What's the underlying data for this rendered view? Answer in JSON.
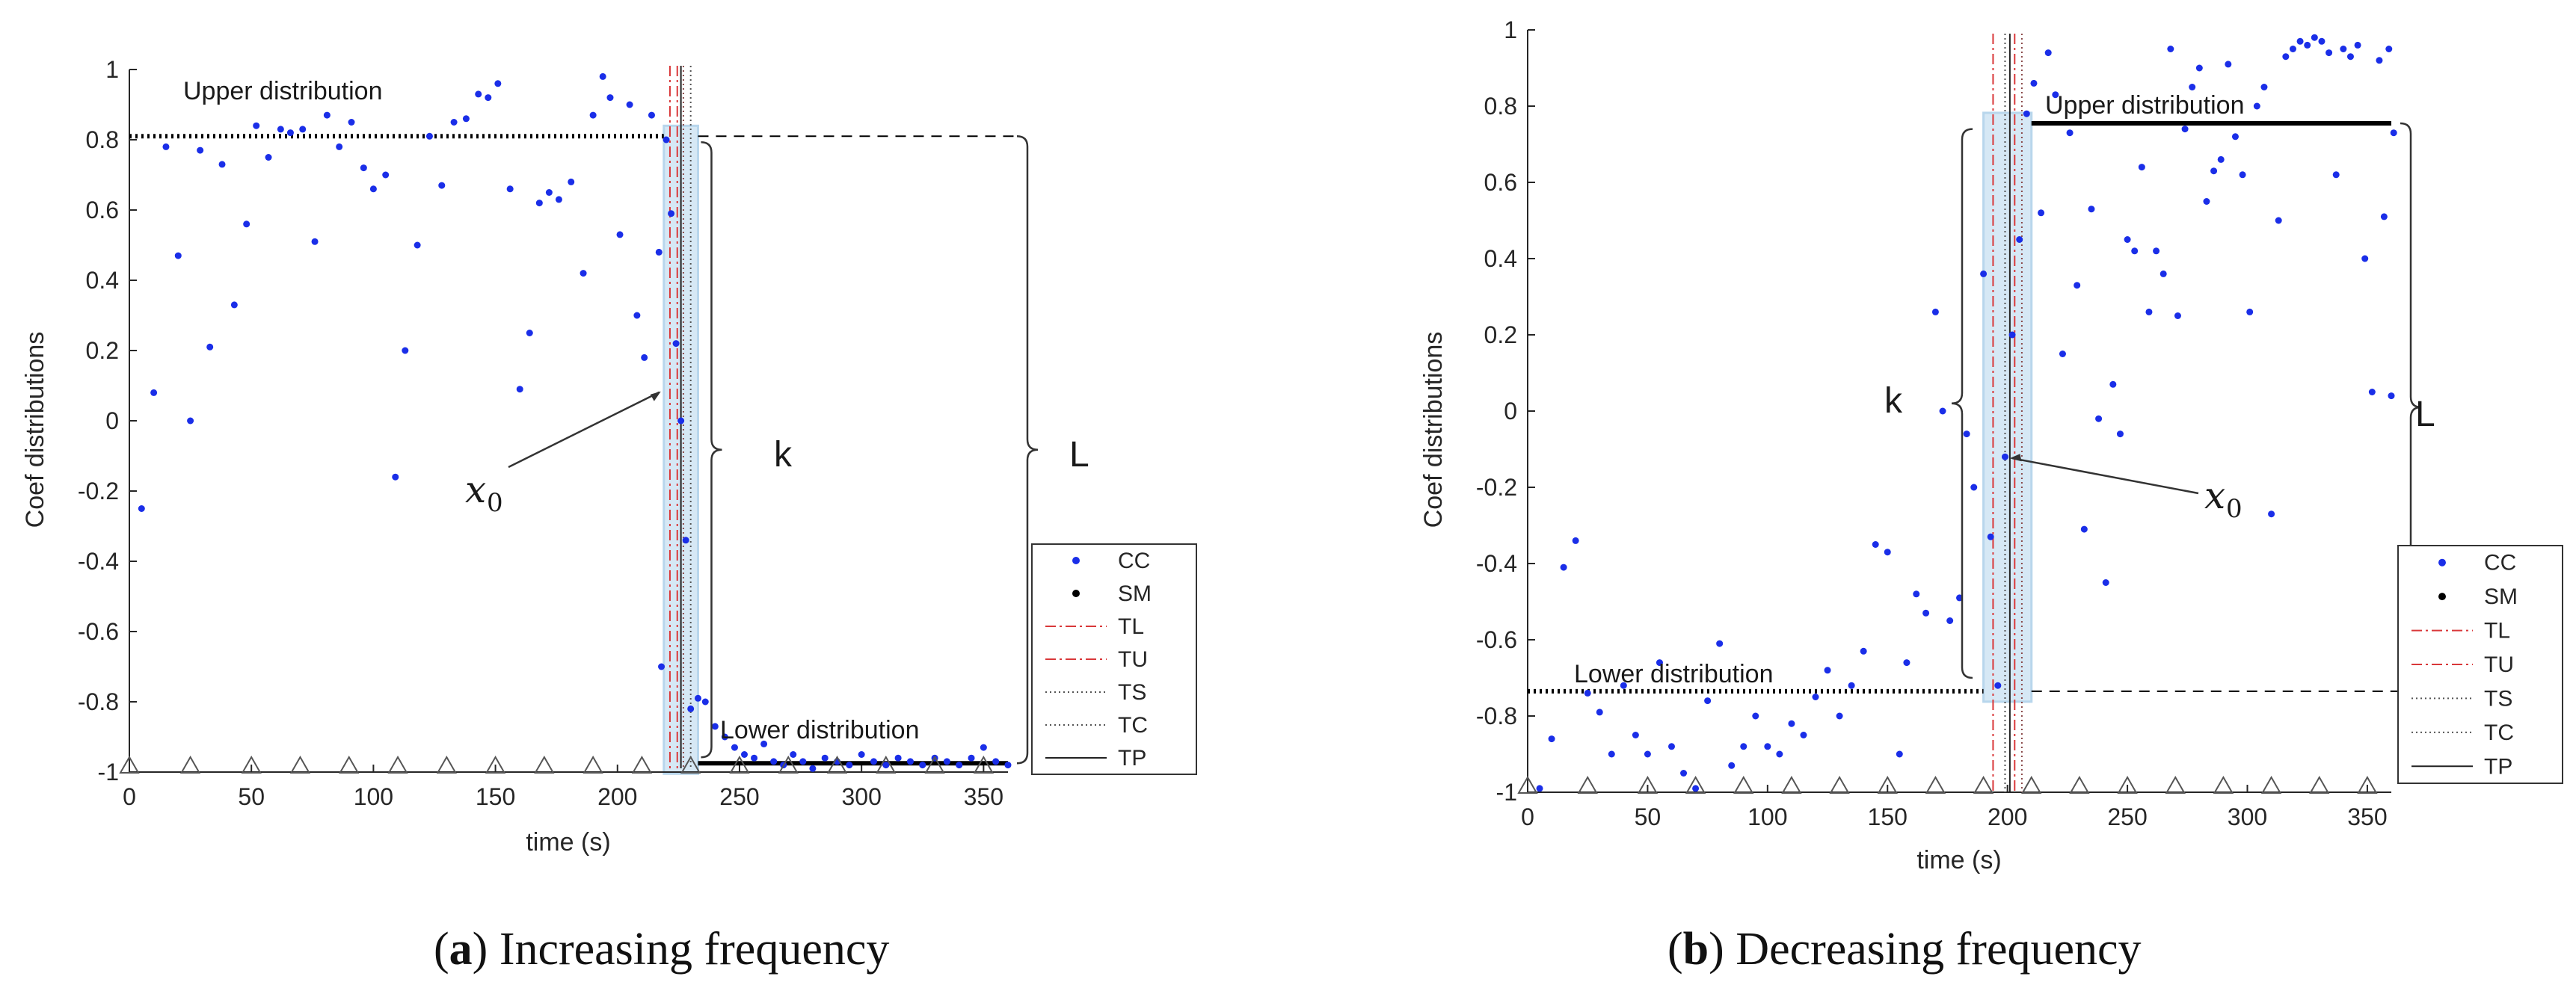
{
  "chart_data": [
    {
      "type": "scatter",
      "caption_label": "a",
      "caption_text": "Increasing frequency",
      "ylabel": "Coef distributions",
      "xlabel": "time (s)",
      "xlim": [
        0,
        360
      ],
      "ylim": [
        -1,
        1
      ],
      "xticks": [
        "0",
        "50",
        "100",
        "150",
        "200",
        "250",
        "300",
        "350"
      ],
      "yticks": [
        "1",
        "0.8",
        "0.6",
        "0.4",
        "0.2",
        "0",
        "-0.2",
        "-0.4",
        "-0.6",
        "-0.8",
        "-1"
      ],
      "upper_label": "Upper distribution",
      "lower_label": "Lower distribution",
      "upper_level": 0.81,
      "lower_level": -0.975,
      "transition_start": 219,
      "transition_end": 233,
      "TL": 221.5,
      "TU": 224.5,
      "TS": 230,
      "TC": 227,
      "TP": 226,
      "x0_point": [
        219,
        0.09
      ],
      "k_label": "k",
      "L_label": "L",
      "x0_label": "x",
      "x0_sub": "0",
      "cc_points": [
        [
          5,
          -0.25
        ],
        [
          10,
          0.08
        ],
        [
          15,
          0.78
        ],
        [
          20,
          0.47
        ],
        [
          25,
          0.0
        ],
        [
          29,
          0.77
        ],
        [
          33,
          0.21
        ],
        [
          38,
          0.73
        ],
        [
          43,
          0.33
        ],
        [
          48,
          0.56
        ],
        [
          52,
          0.84
        ],
        [
          57,
          0.75
        ],
        [
          62,
          0.83
        ],
        [
          66,
          0.82
        ],
        [
          71,
          0.83
        ],
        [
          76,
          0.51
        ],
        [
          81,
          0.87
        ],
        [
          86,
          0.78
        ],
        [
          91,
          0.85
        ],
        [
          96,
          0.72
        ],
        [
          100,
          0.66
        ],
        [
          105,
          0.7
        ],
        [
          109,
          -0.16
        ],
        [
          113,
          0.2
        ],
        [
          118,
          0.5
        ],
        [
          123,
          0.81
        ],
        [
          128,
          0.67
        ],
        [
          133,
          0.85
        ],
        [
          138,
          0.86
        ],
        [
          143,
          0.93
        ],
        [
          147,
          0.92
        ],
        [
          151,
          0.96
        ],
        [
          156,
          0.66
        ],
        [
          160,
          0.09
        ],
        [
          164,
          0.25
        ],
        [
          168,
          0.62
        ],
        [
          172,
          0.65
        ],
        [
          176,
          0.63
        ],
        [
          181,
          0.68
        ],
        [
          186,
          0.42
        ],
        [
          190,
          0.87
        ],
        [
          194,
          0.98
        ],
        [
          197,
          0.92
        ],
        [
          201,
          0.53
        ],
        [
          205,
          0.9
        ],
        [
          208,
          0.3
        ],
        [
          211,
          0.18
        ],
        [
          214,
          0.87
        ],
        [
          217,
          0.48
        ],
        [
          218,
          -0.7
        ],
        [
          220,
          0.8
        ],
        [
          222,
          0.59
        ],
        [
          224,
          0.22
        ],
        [
          226,
          0.0
        ],
        [
          228,
          -0.34
        ],
        [
          230,
          -0.82
        ],
        [
          233,
          -0.79
        ],
        [
          236,
          -0.8
        ],
        [
          240,
          -0.87
        ],
        [
          244,
          -0.9
        ],
        [
          248,
          -0.93
        ],
        [
          252,
          -0.95
        ],
        [
          256,
          -0.96
        ],
        [
          260,
          -0.92
        ],
        [
          264,
          -0.97
        ],
        [
          268,
          -0.98
        ],
        [
          272,
          -0.95
        ],
        [
          276,
          -0.97
        ],
        [
          280,
          -0.99
        ],
        [
          285,
          -0.96
        ],
        [
          290,
          -0.97
        ],
        [
          295,
          -0.98
        ],
        [
          300,
          -0.95
        ],
        [
          305,
          -0.97
        ],
        [
          310,
          -0.98
        ],
        [
          315,
          -0.96
        ],
        [
          320,
          -0.97
        ],
        [
          325,
          -0.98
        ],
        [
          330,
          -0.96
        ],
        [
          335,
          -0.97
        ],
        [
          340,
          -0.98
        ],
        [
          345,
          -0.96
        ],
        [
          350,
          -0.93
        ],
        [
          355,
          -0.97
        ],
        [
          360,
          -0.98
        ]
      ],
      "triangle_x": [
        0,
        25,
        50,
        70,
        90,
        110,
        130,
        150,
        170,
        190,
        210,
        230,
        250,
        270,
        290,
        310,
        330,
        350
      ],
      "legend": [
        "CC",
        "SM",
        "TL",
        "TU",
        "TS",
        "TC",
        "TP"
      ]
    },
    {
      "type": "scatter",
      "caption_label": "b",
      "caption_text": "Decreasing frequency",
      "ylabel": "Coef distributions",
      "xlabel": "time (s)",
      "xlim": [
        0,
        360
      ],
      "ylim": [
        -1,
        1
      ],
      "xticks": [
        "0",
        "50",
        "100",
        "150",
        "200",
        "250",
        "300",
        "350"
      ],
      "yticks": [
        "1",
        "0.8",
        "0.6",
        "0.4",
        "0.2",
        "0",
        "-0.2",
        "-0.4",
        "-0.6",
        "-0.8",
        "-1"
      ],
      "upper_label": "Upper distribution",
      "lower_label": "Lower distribution",
      "upper_level": 0.755,
      "lower_level": -0.735,
      "transition_start": 190,
      "transition_end": 210,
      "TL": 194,
      "TU": 203,
      "TS": 199,
      "TC": 206,
      "TP": 201,
      "x0_point": [
        199,
        -0.12
      ],
      "k_label": "k",
      "L_label": "L",
      "x0_label": "x",
      "x0_sub": "0",
      "cc_points": [
        [
          5,
          -0.99
        ],
        [
          10,
          -0.86
        ],
        [
          15,
          -0.41
        ],
        [
          20,
          -0.34
        ],
        [
          25,
          -0.74
        ],
        [
          30,
          -0.79
        ],
        [
          35,
          -0.9
        ],
        [
          40,
          -0.72
        ],
        [
          45,
          -0.85
        ],
        [
          50,
          -0.9
        ],
        [
          55,
          -0.66
        ],
        [
          60,
          -0.88
        ],
        [
          65,
          -0.95
        ],
        [
          70,
          -0.99
        ],
        [
          75,
          -0.76
        ],
        [
          80,
          -0.61
        ],
        [
          85,
          -0.93
        ],
        [
          90,
          -0.88
        ],
        [
          95,
          -0.8
        ],
        [
          100,
          -0.88
        ],
        [
          105,
          -0.9
        ],
        [
          110,
          -0.82
        ],
        [
          115,
          -0.85
        ],
        [
          120,
          -0.75
        ],
        [
          125,
          -0.68
        ],
        [
          130,
          -0.8
        ],
        [
          135,
          -0.72
        ],
        [
          140,
          -0.63
        ],
        [
          145,
          -0.35
        ],
        [
          150,
          -0.37
        ],
        [
          155,
          -0.9
        ],
        [
          158,
          -0.66
        ],
        [
          162,
          -0.48
        ],
        [
          166,
          -0.53
        ],
        [
          170,
          0.26
        ],
        [
          173,
          0.0
        ],
        [
          176,
          -0.55
        ],
        [
          180,
          -0.49
        ],
        [
          183,
          -0.06
        ],
        [
          186,
          -0.2
        ],
        [
          190,
          0.36
        ],
        [
          193,
          -0.33
        ],
        [
          196,
          -0.72
        ],
        [
          199,
          -0.12
        ],
        [
          202,
          0.2
        ],
        [
          205,
          0.45
        ],
        [
          208,
          0.78
        ],
        [
          211,
          0.86
        ],
        [
          214,
          0.52
        ],
        [
          217,
          0.94
        ],
        [
          220,
          0.83
        ],
        [
          223,
          0.15
        ],
        [
          226,
          0.73
        ],
        [
          229,
          0.33
        ],
        [
          232,
          -0.31
        ],
        [
          235,
          0.53
        ],
        [
          238,
          -0.02
        ],
        [
          241,
          -0.45
        ],
        [
          244,
          0.07
        ],
        [
          247,
          -0.06
        ],
        [
          250,
          0.45
        ],
        [
          253,
          0.42
        ],
        [
          256,
          0.64
        ],
        [
          259,
          0.26
        ],
        [
          262,
          0.42
        ],
        [
          265,
          0.36
        ],
        [
          268,
          0.95
        ],
        [
          271,
          0.25
        ],
        [
          274,
          0.74
        ],
        [
          277,
          0.85
        ],
        [
          280,
          0.9
        ],
        [
          283,
          0.55
        ],
        [
          286,
          0.63
        ],
        [
          289,
          0.66
        ],
        [
          292,
          0.91
        ],
        [
          295,
          0.72
        ],
        [
          298,
          0.62
        ],
        [
          301,
          0.26
        ],
        [
          304,
          0.8
        ],
        [
          307,
          0.85
        ],
        [
          310,
          -0.27
        ],
        [
          313,
          0.5
        ],
        [
          316,
          0.93
        ],
        [
          319,
          0.95
        ],
        [
          322,
          0.97
        ],
        [
          325,
          0.96
        ],
        [
          328,
          0.98
        ],
        [
          331,
          0.97
        ],
        [
          334,
          0.94
        ],
        [
          337,
          0.62
        ],
        [
          340,
          0.95
        ],
        [
          343,
          0.93
        ],
        [
          346,
          0.96
        ],
        [
          349,
          0.4
        ],
        [
          352,
          0.05
        ],
        [
          355,
          0.92
        ],
        [
          357,
          0.51
        ],
        [
          359,
          0.95
        ],
        [
          360,
          0.04
        ],
        [
          361,
          0.73
        ]
      ],
      "triangle_x": [
        0,
        25,
        50,
        70,
        90,
        110,
        130,
        150,
        170,
        190,
        210,
        230,
        250,
        270,
        290,
        310,
        330,
        350
      ],
      "legend": [
        "CC",
        "SM",
        "TL",
        "TU",
        "TS",
        "TC",
        "TP"
      ]
    }
  ]
}
